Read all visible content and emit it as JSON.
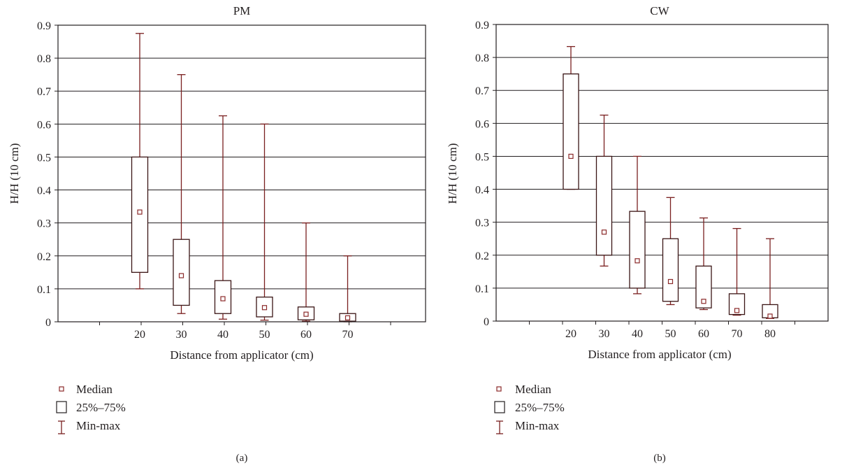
{
  "colors": {
    "box_stroke": "#7a1f1f",
    "median_marker": "#8b2a2a",
    "axis": "#231f20",
    "grid": "#231f20"
  },
  "legend": {
    "median_label": "Median",
    "iqr_label": "25%–75%",
    "range_label": "Min-max",
    "median_icon": "small-square-marker-icon",
    "iqr_icon": "box-icon",
    "range_icon": "whisker-icon"
  },
  "chart_data": [
    {
      "type": "box",
      "title": "PM",
      "panel_label": "(a)",
      "xlabel": "Distance from applicator (cm)",
      "ylabel": "H/H (10 cm)",
      "ylim": [
        0,
        0.9
      ],
      "yticks": [
        "0",
        "0.1",
        "0.2",
        "0.3",
        "0.4",
        "0.5",
        "0.6",
        "0.7",
        "0.8",
        "0.9"
      ],
      "grid": "horizontal",
      "categories": [
        "20",
        "30",
        "40",
        "50",
        "60",
        "70"
      ],
      "series": [
        {
          "min": [
            0.1,
            0.025,
            0.008,
            0.005,
            0.002,
            0.0
          ],
          "q1": [
            0.15,
            0.05,
            0.025,
            0.015,
            0.006,
            0.002
          ],
          "median": [
            0.333,
            0.14,
            0.07,
            0.043,
            0.023,
            0.012
          ],
          "q3": [
            0.5,
            0.25,
            0.125,
            0.075,
            0.045,
            0.025
          ],
          "max": [
            0.875,
            0.75,
            0.625,
            0.6,
            0.3,
            0.2
          ]
        }
      ]
    },
    {
      "type": "box",
      "title": "CW",
      "panel_label": "(b)",
      "xlabel": "Distance from applicator (cm)",
      "ylabel": "H/H (10 cm)",
      "ylim": [
        0,
        0.9
      ],
      "yticks": [
        "0",
        "0.1",
        "0.2",
        "0.3",
        "0.4",
        "0.5",
        "0.6",
        "0.7",
        "0.8",
        "0.9"
      ],
      "grid": "horizontal",
      "categories": [
        "20",
        "30",
        "40",
        "50",
        "60",
        "70",
        "80"
      ],
      "series": [
        {
          "min": [
            0.4,
            0.167,
            0.083,
            0.05,
            0.035,
            0.018,
            0.008
          ],
          "q1": [
            0.4,
            0.2,
            0.1,
            0.06,
            0.04,
            0.02,
            0.01
          ],
          "median": [
            0.5,
            0.27,
            0.183,
            0.12,
            0.06,
            0.032,
            0.015
          ],
          "q3": [
            0.75,
            0.5,
            0.333,
            0.25,
            0.167,
            0.083,
            0.05
          ],
          "max": [
            0.833,
            0.625,
            0.5,
            0.375,
            0.313,
            0.281,
            0.25
          ]
        }
      ]
    }
  ]
}
